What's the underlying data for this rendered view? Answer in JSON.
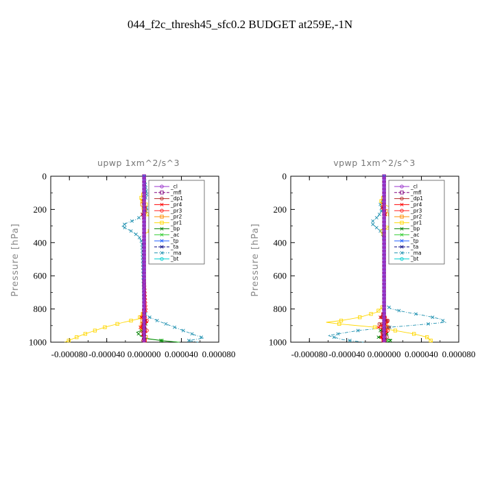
{
  "figure": {
    "title": "044_f2c_thresh45_sfc0.2  BUDGET at259E,-1N"
  },
  "chart_data": [
    {
      "type": "line",
      "title": "upwp   1xm^2/s^3",
      "ylabel": "Pressure [hPa]",
      "xlabel": "",
      "xlim": [
        -0.0001,
        8e-05
      ],
      "ylim": [
        1000,
        0
      ],
      "y_inverted": true,
      "xticks": [
        "-0.000080",
        "-0.000040",
        "0.000000",
        "0.000040",
        "0.000080"
      ],
      "xtick_values": [
        -8e-05,
        -4e-05,
        0,
        4e-05,
        8e-05
      ],
      "yticks": [
        "0",
        "200",
        "400",
        "600",
        "800",
        "1000"
      ],
      "ytick_values": [
        0,
        200,
        400,
        600,
        800,
        1000
      ],
      "legend_position": "top-right",
      "series": [
        {
          "name": "_cl",
          "color": "#9932cc",
          "marker": "circle",
          "dash": "solid",
          "x": [
            0,
            0
          ],
          "y": [
            0,
            1000
          ]
        },
        {
          "name": "_mfl",
          "color": "#800080",
          "marker": "square",
          "dash": "dash",
          "x": [
            0,
            0
          ],
          "y": [
            0,
            1000
          ]
        },
        {
          "name": "_dp1",
          "color": "#b22222",
          "marker": "circle",
          "dash": "solid",
          "x": [
            0,
            0,
            0,
            0,
            2e-06,
            -2e-06,
            3e-06,
            -3e-06,
            2e-06,
            -2e-06,
            0
          ],
          "y": [
            0,
            600,
            820,
            860,
            880,
            900,
            920,
            940,
            960,
            980,
            1000
          ]
        },
        {
          "name": "_pr4",
          "color": "#ff0000",
          "marker": "cross",
          "dash": "solid",
          "x": [
            0,
            0,
            2e-06,
            -2e-06,
            0,
            0,
            2e-06,
            -3e-06,
            4e-06,
            -4e-06,
            3e-06,
            -3e-06,
            2e-06,
            0
          ],
          "y": [
            0,
            180,
            200,
            230,
            260,
            600,
            820,
            850,
            880,
            910,
            940,
            960,
            980,
            1000
          ]
        },
        {
          "name": "_pr3",
          "color": "#ff2020",
          "marker": "circle",
          "dash": "solid",
          "x": [
            0,
            0,
            0,
            3e-06,
            -3e-06,
            3e-06,
            -2e-06,
            2e-06,
            0
          ],
          "y": [
            0,
            600,
            840,
            870,
            900,
            930,
            960,
            980,
            1000
          ]
        },
        {
          "name": "_pr2",
          "color": "#ff8c00",
          "marker": "square",
          "dash": "solid",
          "x": [
            0,
            0,
            -2e-06,
            2e-06,
            0,
            0,
            -3e-06,
            2e-06,
            0
          ],
          "y": [
            0,
            140,
            170,
            200,
            230,
            800,
            920,
            970,
            1000
          ]
        },
        {
          "name": "_pr1",
          "color": "#ffd700",
          "marker": "square",
          "dash": "solid",
          "x": [
            0,
            0,
            -4e-06,
            2e-06,
            -2e-06,
            5e-06,
            1.8e-05,
            2.2e-05,
            6e-06,
            0,
            0,
            -6e-06,
            -2.2e-05,
            -4.2e-05,
            -5.8e-05,
            -6.8e-05,
            -8.5e-05
          ],
          "y": [
            0,
            100,
            140,
            170,
            200,
            240,
            270,
            300,
            330,
            350,
            820,
            860,
            880,
            910,
            940,
            960,
            1000
          ]
        },
        {
          "name": "_bp",
          "color": "#008000",
          "marker": "cross",
          "dash": "solid",
          "x": [
            0,
            0,
            -3e-06,
            2e-06,
            -8e-06,
            -4e-06,
            4e-06,
            1.8e-05,
            3.5e-05
          ],
          "y": [
            0,
            880,
            900,
            920,
            940,
            960,
            980,
            990,
            1000
          ]
        },
        {
          "name": "_ac",
          "color": "#32cd32",
          "marker": "cross",
          "dash": "solid",
          "x": [
            0,
            0,
            2e-06,
            -3e-06,
            2e-06,
            -4e-06,
            6e-06,
            2.2e-05,
            3.8e-05
          ],
          "y": [
            0,
            860,
            890,
            920,
            945,
            965,
            980,
            992,
            1000
          ]
        },
        {
          "name": "_tp",
          "color": "#1e5fff",
          "marker": "cross",
          "dash": "solid",
          "x": [
            0,
            0
          ],
          "y": [
            0,
            1000
          ]
        },
        {
          "name": "_ta",
          "color": "#000080",
          "marker": "cross",
          "dash": "dash",
          "x": [
            0,
            0
          ],
          "y": [
            0,
            1000
          ]
        },
        {
          "name": "_ma",
          "color": "#1e90b0",
          "marker": "cross",
          "dash": "dashdot",
          "x": [
            0,
            3e-06,
            -2e-06,
            4e-06,
            -3e-06,
            -8e-06,
            -1.8e-05,
            -2.4e-05,
            -1.4e-05,
            -6e-06,
            -2e-06,
            0,
            2e-06,
            1.4e-05,
            2.8e-05,
            4.2e-05,
            5.6e-05,
            6.4e-05,
            4.8e-05,
            5.8e-05
          ],
          "y": [
            0,
            120,
            160,
            200,
            240,
            260,
            280,
            300,
            330,
            360,
            400,
            800,
            840,
            870,
            900,
            930,
            960,
            975,
            990,
            1000
          ]
        },
        {
          "name": "_bt",
          "color": "#00ced1",
          "marker": "circle",
          "dash": "solid",
          "x": [
            0,
            0
          ],
          "y": [
            0,
            1000
          ]
        }
      ]
    },
    {
      "type": "line",
      "title": "vpwp   1xm^2/s^3",
      "ylabel": "Pressure [hPa]",
      "xlabel": "",
      "xlim": [
        -0.0001,
        8e-05
      ],
      "ylim": [
        1000,
        0
      ],
      "y_inverted": true,
      "xticks": [
        "-0.000080",
        "-0.000040",
        "0.000000",
        "0.000040",
        "0.000080"
      ],
      "xtick_values": [
        -8e-05,
        -4e-05,
        0,
        4e-05,
        8e-05
      ],
      "yticks": [
        "0",
        "200",
        "400",
        "600",
        "800",
        "1000"
      ],
      "ytick_values": [
        0,
        200,
        400,
        600,
        800,
        1000
      ],
      "legend_position": "top-right",
      "series": [
        {
          "name": "_cl",
          "color": "#9932cc",
          "marker": "circle",
          "dash": "solid",
          "x": [
            0,
            0
          ],
          "y": [
            0,
            1000
          ]
        },
        {
          "name": "_mfl",
          "color": "#800080",
          "marker": "square",
          "dash": "dash",
          "x": [
            0,
            0
          ],
          "y": [
            0,
            1000
          ]
        },
        {
          "name": "_dp1",
          "color": "#b22222",
          "marker": "circle",
          "dash": "solid",
          "x": [
            0,
            0,
            -3e-06,
            4e-06,
            -5e-06,
            5e-06,
            -4e-06,
            3e-06,
            0
          ],
          "y": [
            0,
            820,
            850,
            870,
            890,
            910,
            940,
            970,
            1000
          ]
        },
        {
          "name": "_pr4",
          "color": "#ff0000",
          "marker": "cross",
          "dash": "solid",
          "x": [
            0,
            0,
            -2e-06,
            2e-06,
            0,
            0,
            -4e-06,
            5e-06,
            -6e-06,
            4e-06,
            -3e-06,
            0
          ],
          "y": [
            0,
            160,
            190,
            220,
            250,
            820,
            850,
            880,
            910,
            940,
            970,
            1000
          ]
        },
        {
          "name": "_pr3",
          "color": "#ff2020",
          "marker": "circle",
          "dash": "solid",
          "x": [
            0,
            0,
            3e-06,
            -4e-06,
            4e-06,
            -3e-06,
            0
          ],
          "y": [
            0,
            840,
            870,
            900,
            930,
            960,
            1000
          ]
        },
        {
          "name": "_pr2",
          "color": "#ff8c00",
          "marker": "square",
          "dash": "solid",
          "x": [
            0,
            0,
            -2e-06,
            2e-06,
            0,
            0,
            3e-06,
            -2e-06,
            0
          ],
          "y": [
            0,
            150,
            180,
            210,
            240,
            840,
            910,
            960,
            1000
          ]
        },
        {
          "name": "_pr1",
          "color": "#ffd700",
          "marker": "square",
          "dash": "solid",
          "x": [
            0,
            0,
            -4e-06,
            1.2e-05,
            6e-06,
            1.5e-05,
            6e-06,
            -2e-06,
            0,
            0,
            -8e-06,
            -2.6e-05,
            -4.6e-05,
            -6.2e-05,
            -4.8e-05,
            -1e-05,
            1.2e-05,
            3.2e-05,
            4.6e-05,
            5.2e-05
          ],
          "y": [
            0,
            120,
            160,
            200,
            230,
            270,
            300,
            330,
            360,
            780,
            820,
            850,
            870,
            880,
            890,
            910,
            930,
            950,
            970,
            1000
          ]
        },
        {
          "name": "_bp",
          "color": "#008000",
          "marker": "cross",
          "dash": "solid",
          "x": [
            0,
            0,
            3e-06,
            -4e-06,
            3e-06,
            -6e-06,
            8e-06,
            4e-06
          ],
          "y": [
            0,
            880,
            900,
            930,
            950,
            970,
            985,
            1000
          ]
        },
        {
          "name": "_ac",
          "color": "#32cd32",
          "marker": "cross",
          "dash": "solid",
          "x": [
            0,
            0,
            -2e-06,
            3e-06,
            -3e-06,
            4e-06,
            2e-06
          ],
          "y": [
            0,
            900,
            930,
            950,
            970,
            990,
            1000
          ]
        },
        {
          "name": "_tp",
          "color": "#1e5fff",
          "marker": "cross",
          "dash": "solid",
          "x": [
            0,
            0
          ],
          "y": [
            0,
            1000
          ]
        },
        {
          "name": "_ta",
          "color": "#000080",
          "marker": "cross",
          "dash": "dash",
          "x": [
            0,
            0
          ],
          "y": [
            0,
            1000
          ]
        },
        {
          "name": "_ma",
          "color": "#1e90b0",
          "marker": "cross",
          "dash": "dashdot",
          "x": [
            0,
            0,
            -4e-06,
            -2e-06,
            -6e-06,
            -1.4e-05,
            -8e-06,
            -2e-06,
            0,
            0,
            8e-06,
            2.4e-05,
            4.4e-05,
            6e-05,
            6.6e-05,
            3.8e-05,
            6e-06,
            -2.8e-05,
            -6e-05,
            -4.4e-05,
            -2.2e-05
          ],
          "y": [
            0,
            130,
            170,
            200,
            240,
            280,
            310,
            340,
            380,
            770,
            800,
            820,
            840,
            860,
            880,
            895,
            910,
            930,
            960,
            985,
            1000
          ]
        },
        {
          "name": "_bt",
          "color": "#00ced1",
          "marker": "circle",
          "dash": "solid",
          "x": [
            0,
            0
          ],
          "y": [
            0,
            1000
          ]
        }
      ]
    }
  ]
}
